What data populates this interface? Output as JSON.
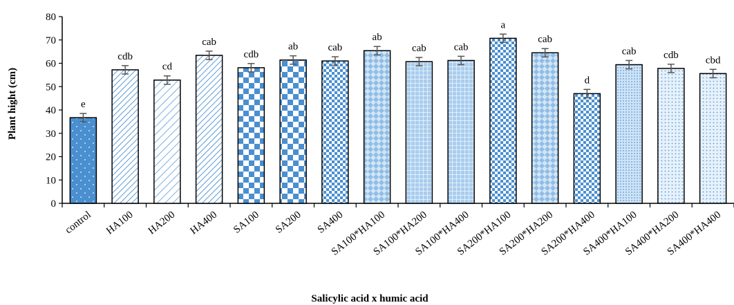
{
  "chart_data": {
    "type": "bar",
    "title": "",
    "xlabel": "Salicylic acid x humic acid",
    "ylabel": "Plant hight  (cm)",
    "ylim": [
      0,
      80
    ],
    "yticks": [
      0,
      10,
      20,
      30,
      40,
      50,
      60,
      70,
      80
    ],
    "grid": false,
    "legend": "none",
    "bar_color": "#5b9bd5",
    "bar_border": "#000000",
    "categories": [
      "control",
      "HA100",
      "HA200",
      "HA400",
      "SA100",
      "SA200",
      "SA400",
      "SA100*HA100",
      "SA100*HA200",
      "SA100*HA400",
      "SA200*HA100",
      "SA200*HA200",
      "SA200*HA400",
      "SA400*HA100",
      "SA400*HA200",
      "SA400*HA400"
    ],
    "values": [
      36.7,
      57.2,
      52.8,
      63.4,
      58.1,
      61.4,
      61.0,
      65.4,
      60.7,
      61.2,
      70.7,
      64.5,
      47.0,
      59.4,
      57.8,
      55.6
    ],
    "error": [
      1.8,
      1.8,
      1.8,
      1.8,
      1.8,
      1.8,
      1.8,
      1.8,
      1.8,
      1.8,
      1.8,
      1.8,
      1.8,
      1.8,
      1.8,
      1.8
    ],
    "letters": [
      "e",
      "cdb",
      "cd",
      "cab",
      "cdb",
      "ab",
      "cab",
      "ab",
      "cab",
      "cab",
      "a",
      "cab",
      "d",
      "cab",
      "cdb",
      "cbd"
    ]
  }
}
